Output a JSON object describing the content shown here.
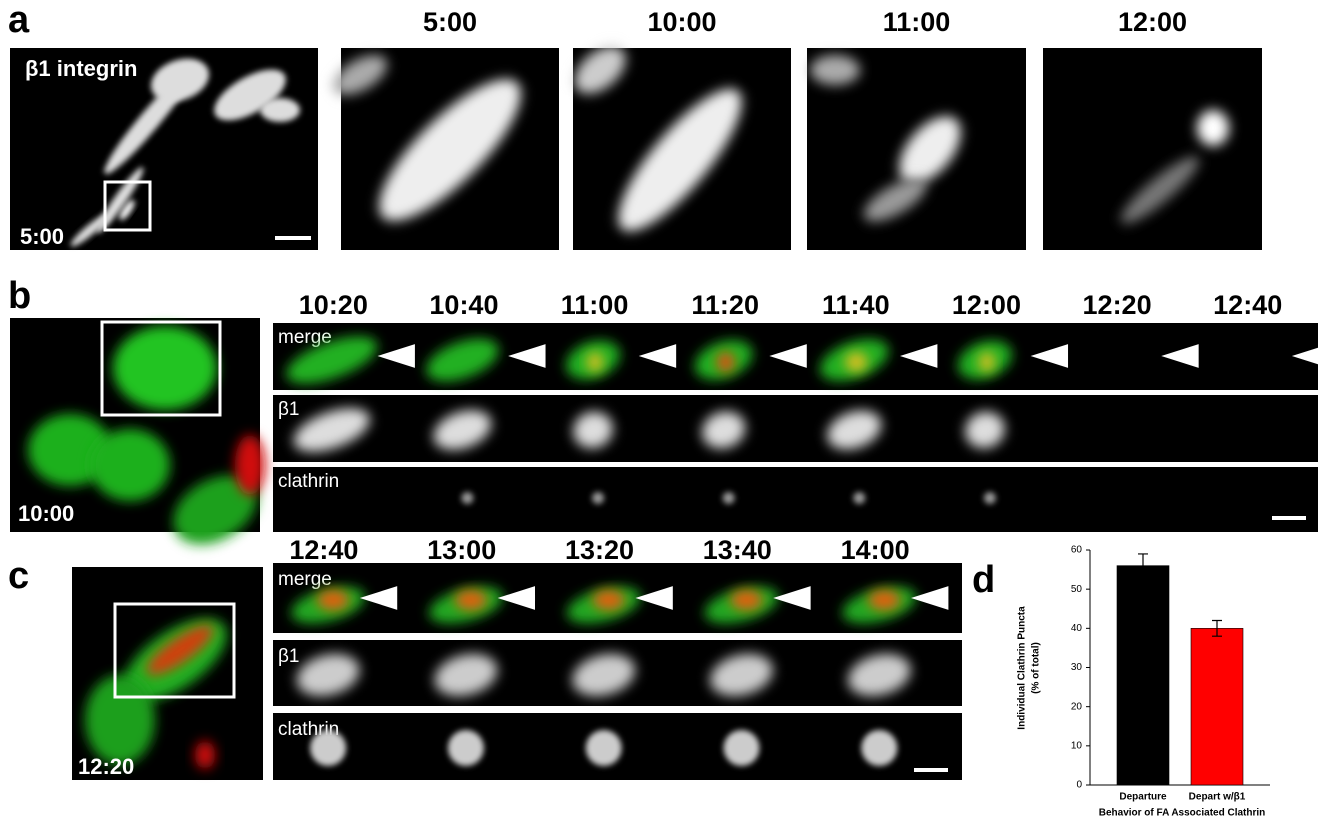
{
  "panel_a": {
    "label": "a",
    "image_label": "β1 integrin",
    "image_time": "5:00",
    "frame_times": [
      "5:00",
      "10:00",
      "11:00",
      "12:00"
    ]
  },
  "panel_b": {
    "label": "b",
    "image_time": "10:00",
    "frame_times": [
      "10:20",
      "10:40",
      "11:00",
      "11:20",
      "11:40",
      "12:00",
      "12:20",
      "12:40"
    ],
    "rows": [
      "merge",
      "β1",
      "clathrin"
    ]
  },
  "panel_c": {
    "label": "c",
    "image_time": "12:20",
    "frame_times": [
      "12:40",
      "13:00",
      "13:20",
      "13:40",
      "14:00"
    ],
    "rows": [
      "merge",
      "β1",
      "clathrin"
    ]
  },
  "panel_d": {
    "label": "d",
    "chart_data": {
      "type": "bar",
      "categories": [
        "Departure",
        "Depart w/β1"
      ],
      "values": [
        56,
        40
      ],
      "errors": [
        3,
        2
      ],
      "colors": [
        "#000000",
        "#ff0000"
      ],
      "ylim": [
        0,
        60
      ],
      "yticks": [
        0,
        10,
        20,
        30,
        40,
        50,
        60
      ],
      "y_label": [
        "Individual Clathrin Puncta",
        "(% of total)"
      ],
      "x_label": "Behavior of FA Associated Clathrin"
    }
  }
}
